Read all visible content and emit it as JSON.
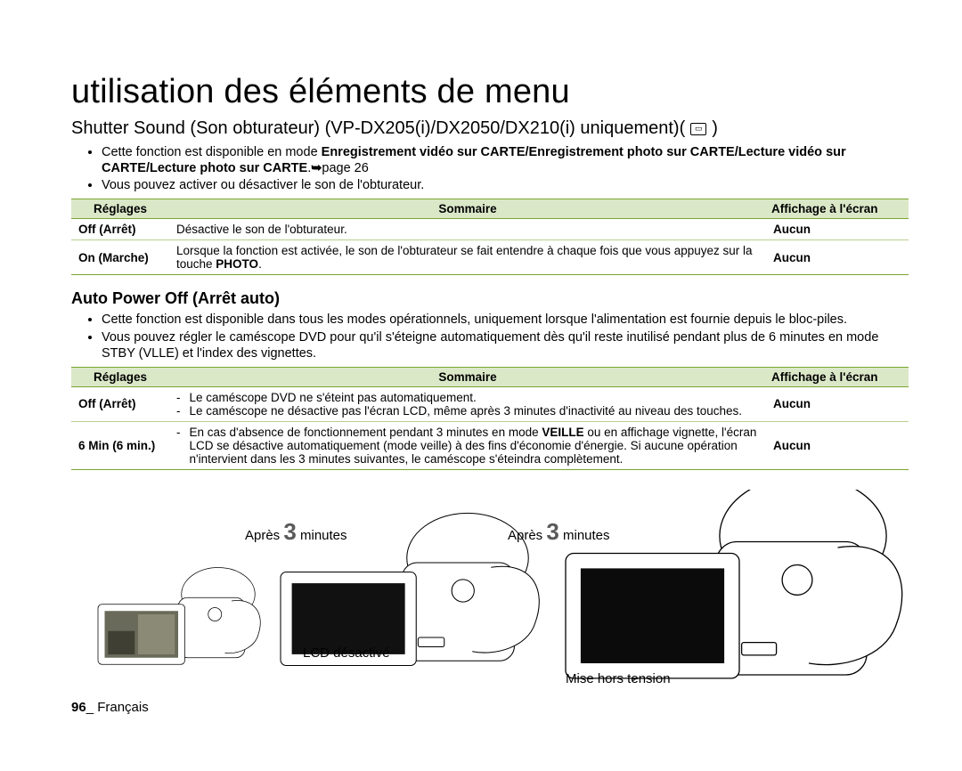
{
  "title": "utilisation des éléments de menu",
  "section1": {
    "heading": "Shutter Sound (Son obturateur) (VP-DX205(i)/DX2050/DX210(i) uniquement)(",
    "heading_close": ")",
    "bullets": [
      {
        "pre": "Cette fonction est disponible en mode ",
        "bold1": "Enregistrement vidéo sur CARTE/Enregistrement photo sur CARTE/Lecture vidéo sur CARTE/Lecture photo sur CARTE",
        "post": ".",
        "arrow": "➥",
        "page": "page 26"
      },
      {
        "text": "Vous pouvez activer ou désactiver le son de l'obturateur."
      }
    ]
  },
  "table1": {
    "headers": [
      "Réglages",
      "Sommaire",
      "Affichage à l'écran"
    ],
    "rows": [
      {
        "reg": "Off (Arrêt)",
        "som": "Désactive le son de l'obturateur.",
        "aff": "Aucun"
      },
      {
        "reg": "On (Marche)",
        "som_pre": "Lorsque la fonction est activée, le son de l'obturateur se fait entendre à chaque fois que vous appuyez sur la touche ",
        "som_bold": "PHOTO",
        "som_post": ".",
        "aff": "Aucun"
      }
    ]
  },
  "section2": {
    "heading": "Auto Power Off (Arrêt auto)",
    "bullets": [
      "Cette fonction est disponible dans tous les modes opérationnels, uniquement lorsque l'alimentation est fournie depuis le bloc-piles.",
      "Vous pouvez régler le caméscope DVD pour qu'il s'éteigne automatiquement dès qu'il reste inutilisé pendant plus de 6 minutes en mode STBY (VLLE) et l'index des vignettes."
    ]
  },
  "table2": {
    "headers": [
      "Réglages",
      "Sommaire",
      "Affichage à l'écran"
    ],
    "rows": [
      {
        "reg": "Off (Arrêt)",
        "lines": [
          "Le caméscope DVD ne s'éteint pas automatiquement.",
          "Le caméscope ne désactive pas l'écran LCD, même après 3 minutes d'inactivité au niveau des touches."
        ],
        "aff": "Aucun"
      },
      {
        "reg": "6 Min (6 min.)",
        "lines": [
          "En cas d'absence de fonctionnement pendant 3 minutes en mode |VEILLE| ou en affichage vignette, l'écran LCD se désactive automatiquement (mode veille) à des fins d'économie d'énergie. Si aucune opération n'intervient dans les 3 minutes suivantes, le caméscope s'éteindra complètement."
        ],
        "aff": "Aucun"
      }
    ]
  },
  "illus": {
    "cap1_pre": "Après ",
    "cap1_num": "3",
    "cap1_post": " minutes",
    "cap2_pre": "Après ",
    "cap2_num": "3",
    "cap2_post": " minutes",
    "lcd_off": "LCD désactivé",
    "power_off": "Mise hors tension"
  },
  "footer": {
    "page_num": "96",
    "sep": "_ ",
    "lang": "Français"
  },
  "colors": {
    "table_header_bg": "#dbe8c8",
    "table_border": "#7aa52f",
    "row_border": "#b8cf8f",
    "big3": "#5a5a5a"
  }
}
